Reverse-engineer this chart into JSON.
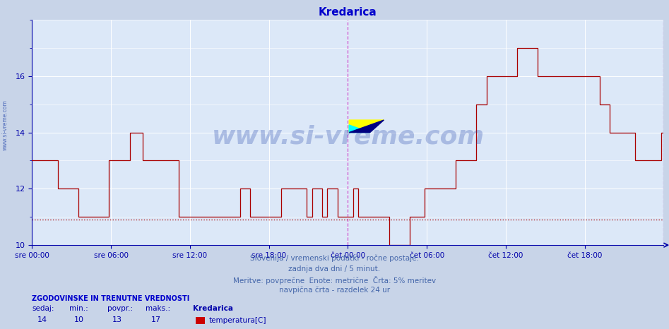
{
  "title": "Kredarica",
  "title_color": "#0000cc",
  "bg_color": "#c8d4e8",
  "plot_bg_color": "#dce8f8",
  "grid_color": "#ffffff",
  "ylim": [
    10,
    18
  ],
  "yticks": [
    10,
    12,
    14,
    16
  ],
  "tick_color": "#0000aa",
  "line_color": "#aa0000",
  "dashed_hline_y": 10.9,
  "dashed_hline_color": "#aa0000",
  "vline_color": "#cc44cc",
  "x_tick_labels": [
    "sre 00:00",
    "sre 06:00",
    "sre 12:00",
    "sre 18:00",
    "čet 00:00",
    "čet 06:00",
    "čet 12:00",
    "čet 18:00"
  ],
  "x_tick_positions": [
    0.0,
    0.125,
    0.25,
    0.375,
    0.5,
    0.625,
    0.75,
    0.875
  ],
  "footer_lines": [
    "Slovenija / vremenski podatki - ročne postaje.",
    "zadnja dva dni / 5 minut.",
    "Meritve: povprečne  Enote: metrične  Črta: 5% meritev",
    "navpična črta - razdelek 24 ur"
  ],
  "footer_color": "#4466aa",
  "legend_title": "ZGODOVINSKE IN TRENUTNE VREDNOSTI",
  "legend_title_color": "#0000cc",
  "legend_labels": [
    "sedaj:",
    "min.:",
    "povpr.:",
    "maks.:"
  ],
  "legend_values": [
    "14",
    "10",
    "13",
    "17"
  ],
  "legend_series_name": "Kredarica",
  "legend_series_label": "temperatura[C]",
  "legend_series_color": "#cc0000",
  "legend_color": "#0000aa",
  "watermark_text": "www.si-vreme.com",
  "watermark_color": "#2244aa",
  "watermark_alpha": 0.28,
  "left_label": "www.si-vreme.com",
  "left_label_color": "#2244aa",
  "temperature_data": [
    13,
    13,
    13,
    13,
    13,
    13,
    13,
    13,
    13,
    13,
    12,
    12,
    12,
    12,
    12,
    12,
    12,
    12,
    11,
    11,
    11,
    11,
    11,
    11,
    11,
    11,
    11,
    11,
    11,
    11,
    13,
    13,
    13,
    13,
    13,
    13,
    13,
    13,
    14,
    14,
    14,
    14,
    14,
    13,
    13,
    13,
    13,
    13,
    13,
    13,
    13,
    13,
    13,
    13,
    13,
    13,
    13,
    11,
    11,
    11,
    11,
    11,
    11,
    11,
    11,
    11,
    11,
    11,
    11,
    11,
    11,
    11,
    11,
    11,
    11,
    11,
    11,
    11,
    11,
    11,
    11,
    12,
    12,
    12,
    12,
    11,
    11,
    11,
    11,
    11,
    11,
    11,
    11,
    11,
    11,
    11,
    11,
    12,
    12,
    12,
    12,
    12,
    12,
    12,
    12,
    12,
    12,
    11,
    11,
    12,
    12,
    12,
    12,
    11,
    11,
    12,
    12,
    12,
    12,
    11,
    11,
    11,
    11,
    11,
    11,
    12,
    12,
    11,
    11,
    11,
    11,
    11,
    11,
    11,
    11,
    11,
    11,
    11,
    11,
    10,
    10,
    10,
    10,
    10,
    10,
    10,
    10,
    11,
    11,
    11,
    11,
    11,
    11,
    12,
    12,
    12,
    12,
    12,
    12,
    12,
    12,
    12,
    12,
    12,
    12,
    13,
    13,
    13,
    13,
    13,
    13,
    13,
    13,
    15,
    15,
    15,
    15,
    16,
    16,
    16,
    16,
    16,
    16,
    16,
    16,
    16,
    16,
    16,
    16,
    17,
    17,
    17,
    17,
    17,
    17,
    17,
    17,
    16,
    16,
    16,
    16,
    16,
    16,
    16,
    16,
    16,
    16,
    16,
    16,
    16,
    16,
    16,
    16,
    16,
    16,
    16,
    16,
    16,
    16,
    16,
    16,
    15,
    15,
    15,
    15,
    14,
    14,
    14,
    14,
    14,
    14,
    14,
    14,
    14,
    14,
    13,
    13,
    13,
    13,
    13,
    13,
    13,
    13,
    13,
    13,
    14,
    14
  ]
}
